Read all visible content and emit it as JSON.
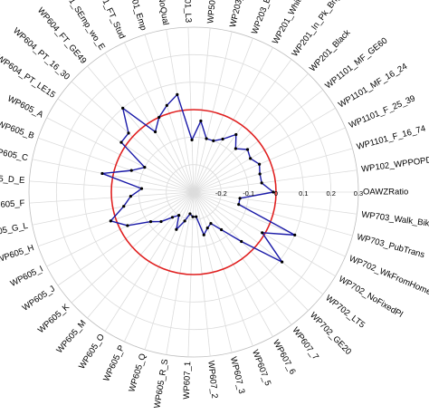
{
  "chart_data": {
    "type": "radar",
    "title": "",
    "categories": [
      "OAWZRatio",
      "WP102_WPPOPDENS",
      "WP1101_F_16_74",
      "WP1101_F_25_39",
      "WP1101_MF_16_24",
      "WP1101_MF_GE60",
      "WP201_Black",
      "WP201_In_Pk_Bng",
      "WP201_WhiteBrit",
      "WP203_EU_2001_11",
      "WP203_EU_pre2001",
      "WP501_GE_L4",
      "WP501_L3",
      "WP501_NoQual",
      "WP601_Emp",
      "WP601_FT_Stud",
      "WP601_SEmp_wo_E",
      "WP604_FT_GE49",
      "WP604_PT_16_30",
      "WP604_PT_LE15",
      "WP605_A",
      "WP605_B",
      "WP605_C",
      "WP605_D_E",
      "WP605_F",
      "WP605_G_L",
      "WP605_H",
      "WP605_I",
      "WP605_J",
      "WP605_K",
      "WP605_M",
      "WP605_O",
      "WP605_P",
      "WP605_Q",
      "WP605_R_S",
      "WP607_1",
      "WP607_2",
      "WP607_3",
      "WP607_5",
      "WP607_6",
      "WP607_7",
      "WP702_GE20",
      "WP702_LT5",
      "WP702_NoFixedPl",
      "WP702_WkFromHome",
      "WP703_PubTrans",
      "WP703_Walk_Bike"
    ],
    "series": [
      {
        "color": "#1a1aa8",
        "values": [
          -0.01,
          -0.05,
          -0.05,
          -0.04,
          -0.06,
          -0.05,
          -0.08,
          -0.04,
          -0.08,
          -0.1,
          -0.1,
          -0.04,
          -0.11,
          0.06,
          0.03,
          0.0,
          -0.04,
          0.1,
          0.02,
          0.02,
          -0.1,
          -0.06,
          0.04,
          -0.11,
          -0.07,
          -0.04,
          0.02,
          -0.03,
          -0.11,
          -0.14,
          -0.18,
          -0.2,
          -0.15,
          -0.19,
          -0.22,
          -0.21,
          -0.21,
          -0.14,
          -0.16,
          -0.17,
          -0.13,
          -0.05,
          0.11,
          -0.01,
          0.1,
          -0.13,
          -0.13
        ]
      },
      {
        "color": "#e02020",
        "values": [
          0,
          0,
          0,
          0,
          0,
          0,
          0,
          0,
          0,
          0,
          0,
          0,
          0,
          0,
          0,
          0,
          0,
          0,
          0,
          0,
          0,
          0,
          0,
          0,
          0,
          0,
          0,
          0,
          0,
          0,
          0,
          0,
          0,
          0,
          0,
          0,
          0,
          0,
          0,
          0,
          0,
          0,
          0,
          0,
          0,
          0,
          0
        ]
      }
    ],
    "radial_ticks": [
      "-0.2",
      "-0.1",
      "0",
      "0.1",
      "0.2",
      "0.3"
    ],
    "rlim": [
      -0.3,
      0.3
    ],
    "grid": true,
    "legend": "none"
  }
}
